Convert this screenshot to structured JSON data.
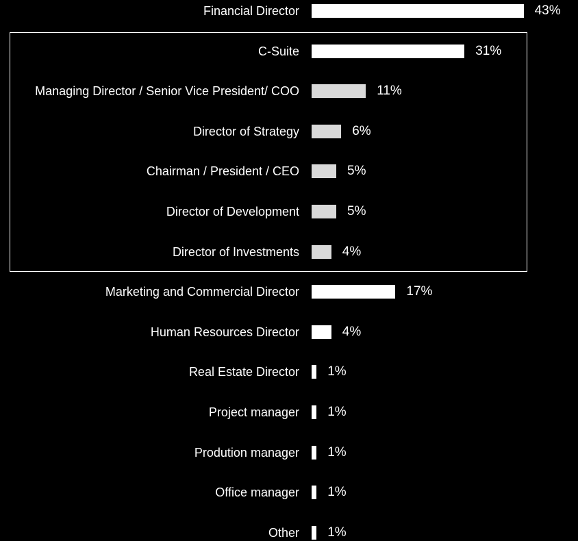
{
  "chart_data": {
    "type": "bar",
    "orientation": "horizontal",
    "categories": [
      "Financial Director",
      "C-Suite",
      "Managing Director / Senior Vice President/ COO",
      "Director of Strategy",
      "Chairman / President / CEO",
      "Director of Development",
      "Director of Investments",
      "Marketing and Commercial Director",
      "Human Resources Director",
      "Real Estate Director",
      "Project manager",
      "Prodution manager",
      "Office manager",
      "Other"
    ],
    "values": [
      43,
      31,
      11,
      6,
      5,
      5,
      4,
      17,
      4,
      1,
      1,
      1,
      1,
      1
    ],
    "value_labels": [
      "43%",
      "31%",
      "11%",
      "6%",
      "5%",
      "5%",
      "4%",
      "17%",
      "4%",
      "1%",
      "1%",
      "1%",
      "1%",
      "1%"
    ],
    "colors": [
      "#ffffff",
      "#ffffff",
      "#d9d9d9",
      "#d9d9d9",
      "#d9d9d9",
      "#d9d9d9",
      "#d9d9d9",
      "#ffffff",
      "#ffffff",
      "#ffffff",
      "#ffffff",
      "#ffffff",
      "#ffffff",
      "#ffffff"
    ]
  }
}
